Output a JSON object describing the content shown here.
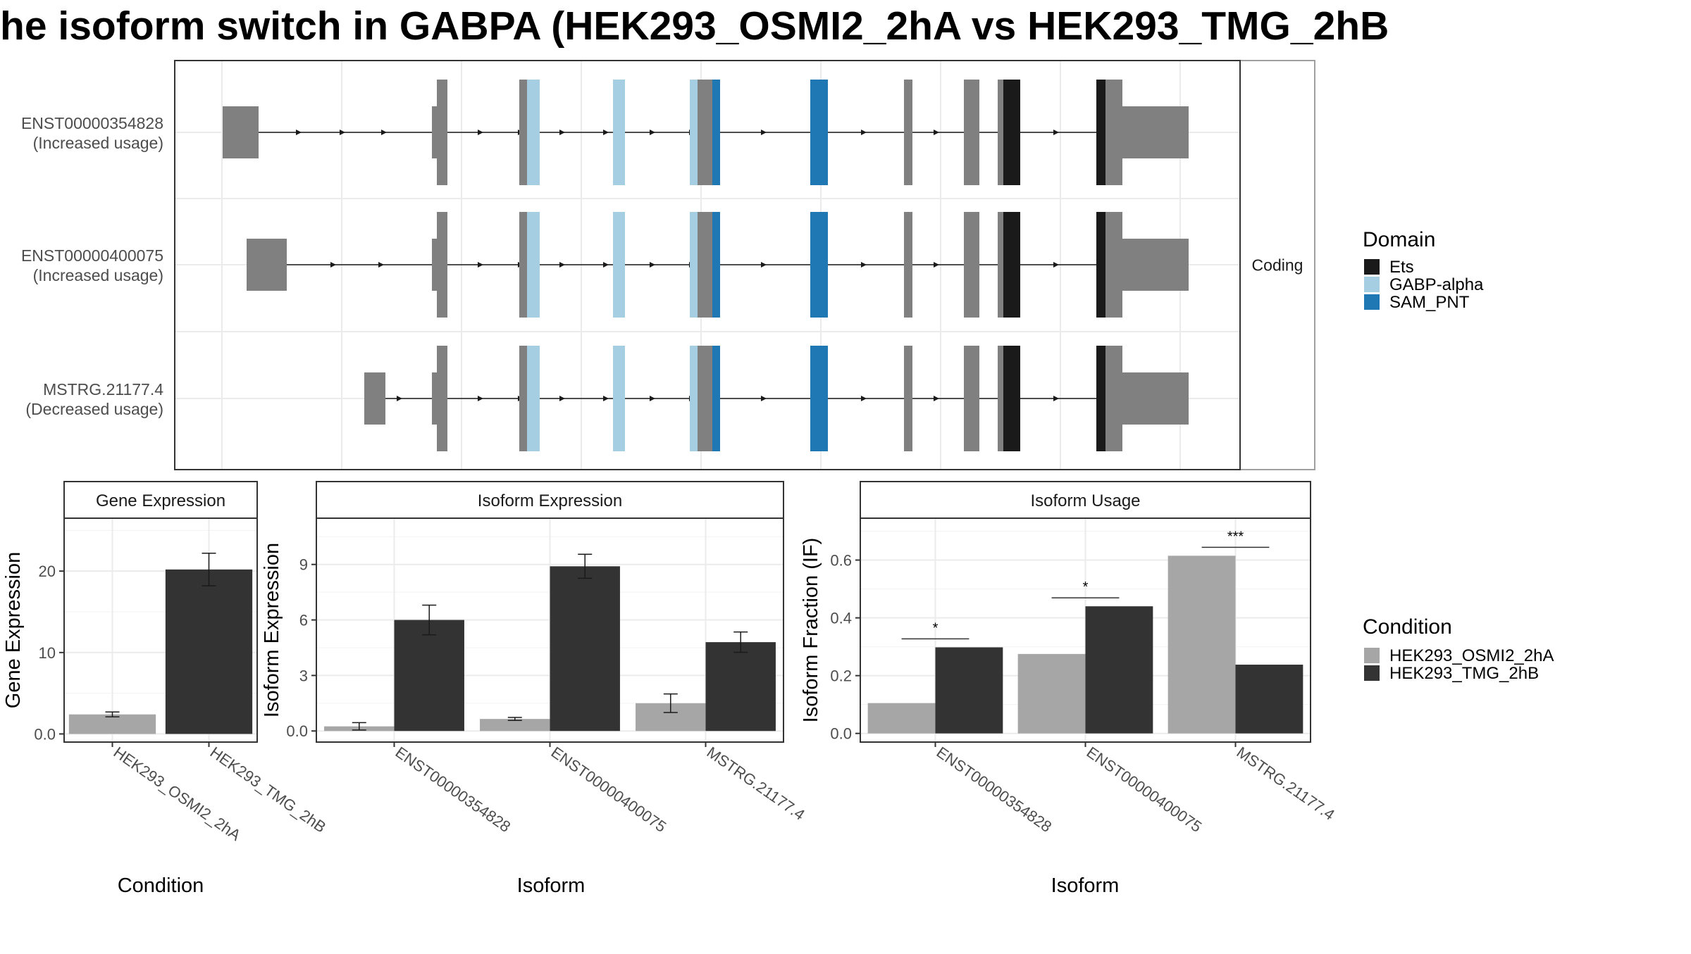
{
  "page": {
    "title": "he isoform switch in GABPA (HEK293_OSMI2_2hA vs HEK293_TMG_2hB"
  },
  "transcript_panel": {
    "strip_label": "Coding",
    "transcripts": [
      {
        "id": "ENST00000354828",
        "usage": "(Increased usage)"
      },
      {
        "id": "ENST00000400075",
        "usage": "(Increased usage)"
      },
      {
        "id": "MSTRG.21177.4",
        "usage": "(Decreased usage)"
      }
    ],
    "legend": {
      "title": "Domain",
      "items": [
        {
          "label": "Ets",
          "color": "#1a1a1a"
        },
        {
          "label": "GABP-alpha",
          "color": "#a6cee3"
        },
        {
          "label": "SAM_PNT",
          "color": "#1f78b4"
        }
      ]
    },
    "colors": {
      "exon": "#808080"
    }
  },
  "condition_legend": {
    "title": "Condition",
    "items": [
      {
        "label": "HEK293_OSMI2_2hA",
        "color": "#a6a6a6"
      },
      {
        "label": "HEK293_TMG_2hB",
        "color": "#333333"
      }
    ]
  },
  "chart_data": [
    {
      "type": "bar",
      "title": "Gene Expression",
      "xlabel": "Condition",
      "ylabel": "Gene Expression",
      "categories": [
        "HEK293_OSMI2_2hA",
        "HEK293_TMG_2hB"
      ],
      "values": [
        2.4,
        20.2
      ],
      "errors": [
        0.3,
        2.0
      ],
      "colors": [
        "#a6a6a6",
        "#333333"
      ],
      "ylim": [
        -1,
        26.5
      ],
      "yticks": [
        0,
        10,
        20
      ],
      "grid": true
    },
    {
      "type": "bar",
      "title": "Isoform Expression",
      "xlabel": "Isoform",
      "ylabel": "Isoform Expression",
      "categories": [
        "ENST00000354828",
        "ENST00000400075",
        "MSTRG.21177.4"
      ],
      "series": [
        {
          "name": "HEK293_OSMI2_2hA",
          "values": [
            0.25,
            0.65,
            1.5
          ],
          "errors": [
            0.2,
            0.08,
            0.5
          ]
        },
        {
          "name": "HEK293_TMG_2hB",
          "values": [
            6.0,
            8.9,
            4.8
          ],
          "errors": [
            0.8,
            0.65,
            0.55
          ]
        }
      ],
      "ylim": [
        -0.6,
        11.5
      ],
      "yticks": [
        0,
        3,
        6,
        9
      ],
      "grid": true
    },
    {
      "type": "bar",
      "title": "Isoform Usage",
      "xlabel": "Isoform",
      "ylabel": "Isoform Fraction (IF)",
      "categories": [
        "ENST00000354828",
        "ENST00000400075",
        "MSTRG.21177.4"
      ],
      "series": [
        {
          "name": "HEK293_OSMI2_2hA",
          "values": [
            0.105,
            0.275,
            0.615
          ]
        },
        {
          "name": "HEK293_TMG_2hB",
          "values": [
            0.298,
            0.44,
            0.238
          ]
        }
      ],
      "significance": [
        "*",
        "*",
        "***"
      ],
      "ylim": [
        -0.03,
        0.745
      ],
      "yticks": [
        0.0,
        0.2,
        0.4,
        0.6
      ],
      "grid": true
    }
  ]
}
